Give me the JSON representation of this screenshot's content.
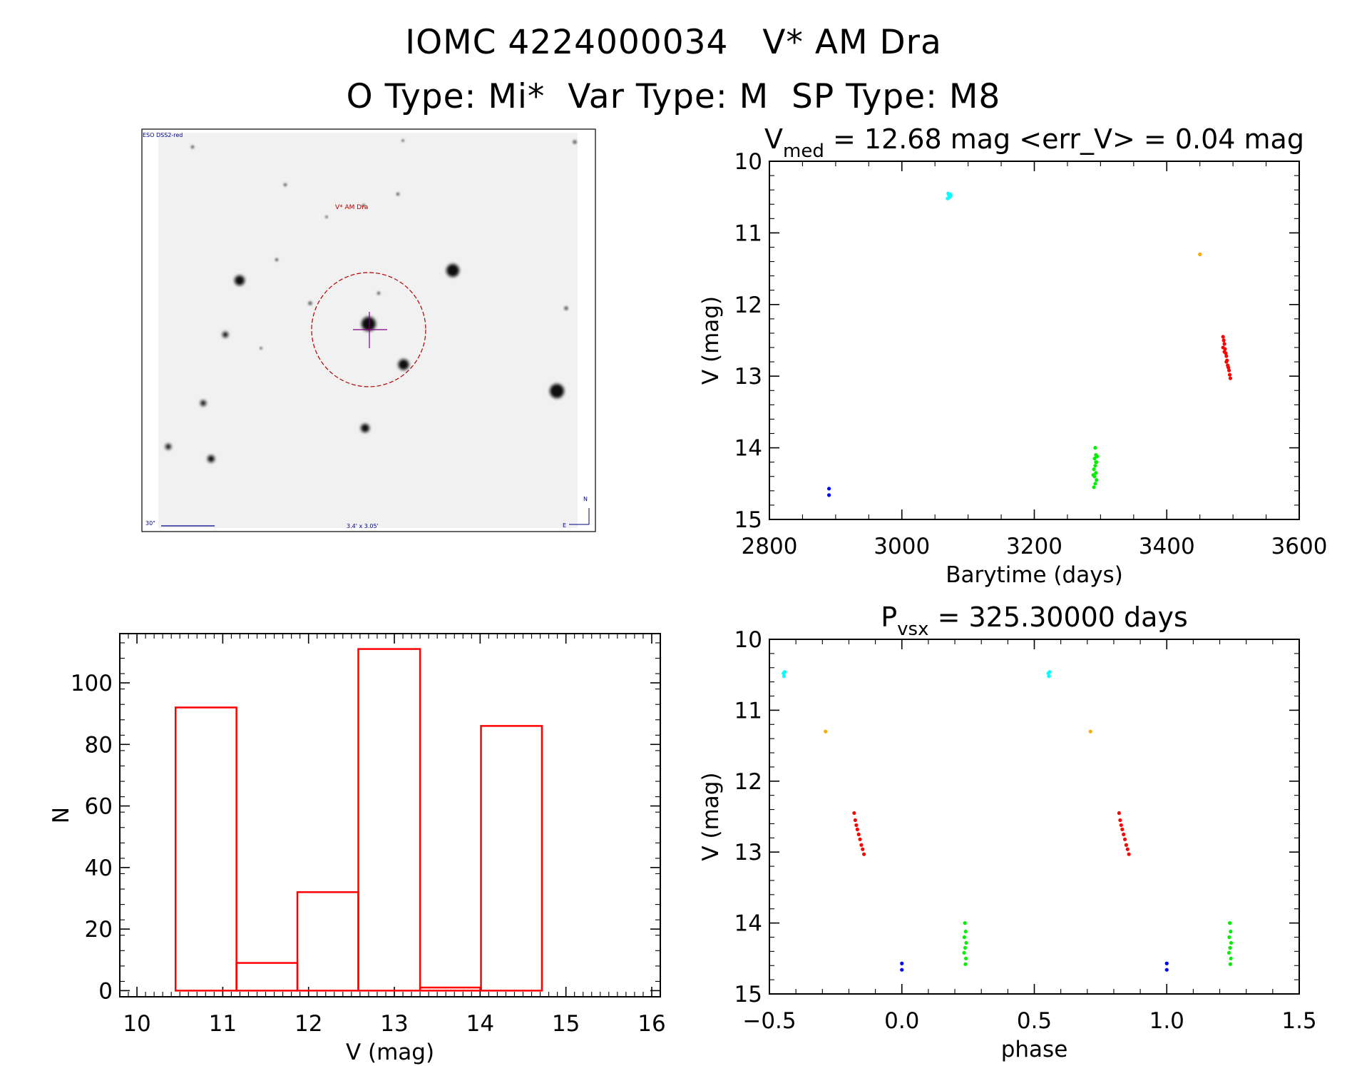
{
  "header": {
    "title_line1": "IOMC 4224000034   V* AM Dra",
    "title_line2": "O Type: Mi*  Var Type: M  SP Type: M8"
  },
  "finder": {
    "survey_label": "ESO DSS2-red",
    "target_label": "V* AM Dra",
    "scale_label": "30\"",
    "field_label": "3.4' x 3.05'",
    "compass_n": "N",
    "compass_e": "E"
  },
  "chart_data": [
    {
      "type": "scatter",
      "title": "V_med = 12.68 mag <err_V> = 0.04 mag",
      "title_main": "V",
      "title_sub": "med",
      "title_rest": " = 12.68 mag <err_V> = 0.04 mag",
      "xlabel": "Barytime (days)",
      "ylabel": "V (mag)",
      "xlim": [
        2800,
        3600
      ],
      "ylim": [
        15,
        10
      ],
      "xticks": [
        2800,
        3000,
        3200,
        3400,
        3600
      ],
      "yticks": [
        10,
        11,
        12,
        13,
        14,
        15
      ],
      "series": [
        {
          "color": "#0000ff",
          "points": [
            [
              2890,
              14.57
            ],
            [
              2890,
              14.66
            ]
          ]
        },
        {
          "color": "#00ffff",
          "points": [
            [
              3070,
              10.45
            ],
            [
              3071,
              10.47
            ],
            [
              3072,
              10.5
            ],
            [
              3073,
              10.46
            ],
            [
              3069,
              10.52
            ],
            [
              3074,
              10.48
            ]
          ]
        },
        {
          "color": "#00ee00",
          "points": [
            [
              3292,
              14.0
            ],
            [
              3293,
              14.1
            ],
            [
              3291,
              14.15
            ],
            [
              3294,
              14.2
            ],
            [
              3292,
              14.25
            ],
            [
              3290,
              14.3
            ],
            [
              3293,
              14.35
            ],
            [
              3291,
              14.4
            ],
            [
              3294,
              14.45
            ],
            [
              3292,
              14.5
            ],
            [
              3290,
              14.55
            ],
            [
              3293,
              14.2
            ],
            [
              3295,
              14.12
            ],
            [
              3289,
              14.38
            ]
          ]
        },
        {
          "color": "#ffaa00",
          "points": [
            [
              3450,
              11.3
            ]
          ]
        },
        {
          "color": "#ff0000",
          "points": [
            [
              3485,
              12.45
            ],
            [
              3486,
              12.5
            ],
            [
              3487,
              12.55
            ],
            [
              3485,
              12.6
            ],
            [
              3488,
              12.62
            ],
            [
              3489,
              12.68
            ],
            [
              3490,
              12.72
            ],
            [
              3491,
              12.78
            ],
            [
              3492,
              12.85
            ],
            [
              3493,
              12.88
            ],
            [
              3494,
              12.92
            ],
            [
              3495,
              12.98
            ],
            [
              3496,
              13.03
            ],
            [
              3487,
              12.66
            ],
            [
              3490,
              12.8
            ]
          ]
        }
      ]
    },
    {
      "type": "scatter",
      "title": "P_vsx = 325.30000 days",
      "title_main": "P",
      "title_sub": "vsx",
      "title_rest": " = 325.30000 days",
      "xlabel": "phase",
      "ylabel": "V (mag)",
      "xlim": [
        -0.5,
        1.5
      ],
      "ylim": [
        15,
        10
      ],
      "xticks": [
        -0.5,
        0.0,
        0.5,
        1.0,
        1.5
      ],
      "xtick_labels": [
        "−0.5",
        "0.0",
        "0.5",
        "1.0",
        "1.5"
      ],
      "yticks": [
        10,
        11,
        12,
        13,
        14,
        15
      ],
      "series": [
        {
          "color": "#00ffff",
          "points": [
            [
              -0.447,
              10.48
            ],
            [
              -0.445,
              10.52
            ],
            [
              -0.442,
              10.46
            ],
            [
              0.553,
              10.48
            ],
            [
              0.555,
              10.52
            ],
            [
              0.558,
              10.46
            ]
          ]
        },
        {
          "color": "#ffaa00",
          "points": [
            [
              -0.288,
              11.3
            ],
            [
              0.712,
              11.3
            ]
          ]
        },
        {
          "color": "#ff0000",
          "points": [
            [
              -0.18,
              12.45
            ],
            [
              -0.176,
              12.55
            ],
            [
              -0.172,
              12.62
            ],
            [
              -0.168,
              12.68
            ],
            [
              -0.163,
              12.75
            ],
            [
              -0.158,
              12.82
            ],
            [
              -0.153,
              12.9
            ],
            [
              -0.148,
              12.96
            ],
            [
              -0.143,
              13.03
            ],
            [
              0.82,
              12.45
            ],
            [
              0.824,
              12.55
            ],
            [
              0.828,
              12.62
            ],
            [
              0.832,
              12.68
            ],
            [
              0.837,
              12.75
            ],
            [
              0.842,
              12.82
            ],
            [
              0.847,
              12.9
            ],
            [
              0.852,
              12.96
            ],
            [
              0.857,
              13.03
            ]
          ]
        },
        {
          "color": "#0000ff",
          "points": [
            [
              0.0,
              14.57
            ],
            [
              0.0,
              14.66
            ],
            [
              1.0,
              14.57
            ],
            [
              1.0,
              14.66
            ]
          ]
        },
        {
          "color": "#00ee00",
          "points": [
            [
              0.238,
              14.0
            ],
            [
              0.241,
              14.12
            ],
            [
              0.236,
              14.2
            ],
            [
              0.243,
              14.28
            ],
            [
              0.239,
              14.35
            ],
            [
              0.235,
              14.42
            ],
            [
              0.242,
              14.5
            ],
            [
              0.24,
              14.58
            ],
            [
              1.238,
              14.0
            ],
            [
              1.241,
              14.12
            ],
            [
              1.236,
              14.2
            ],
            [
              1.243,
              14.28
            ],
            [
              1.239,
              14.35
            ],
            [
              1.235,
              14.42
            ],
            [
              1.242,
              14.5
            ],
            [
              1.24,
              14.58
            ]
          ]
        }
      ]
    },
    {
      "type": "bar",
      "title": "",
      "xlabel": "V (mag)",
      "ylabel": "N",
      "xlim": [
        9.8,
        16.1
      ],
      "ylim": [
        -2,
        116
      ],
      "xticks": [
        10,
        11,
        12,
        13,
        14,
        15,
        16
      ],
      "yticks": [
        0,
        20,
        40,
        60,
        80,
        100
      ],
      "bar_color": "#ff0000",
      "bins": [
        {
          "x0": 10.45,
          "x1": 11.16,
          "count": 92
        },
        {
          "x0": 11.16,
          "x1": 11.87,
          "count": 9
        },
        {
          "x0": 11.87,
          "x1": 12.58,
          "count": 32
        },
        {
          "x0": 12.58,
          "x1": 13.3,
          "count": 111
        },
        {
          "x0": 13.3,
          "x1": 14.01,
          "count": 1
        },
        {
          "x0": 14.01,
          "x1": 14.72,
          "count": 86
        }
      ]
    }
  ]
}
